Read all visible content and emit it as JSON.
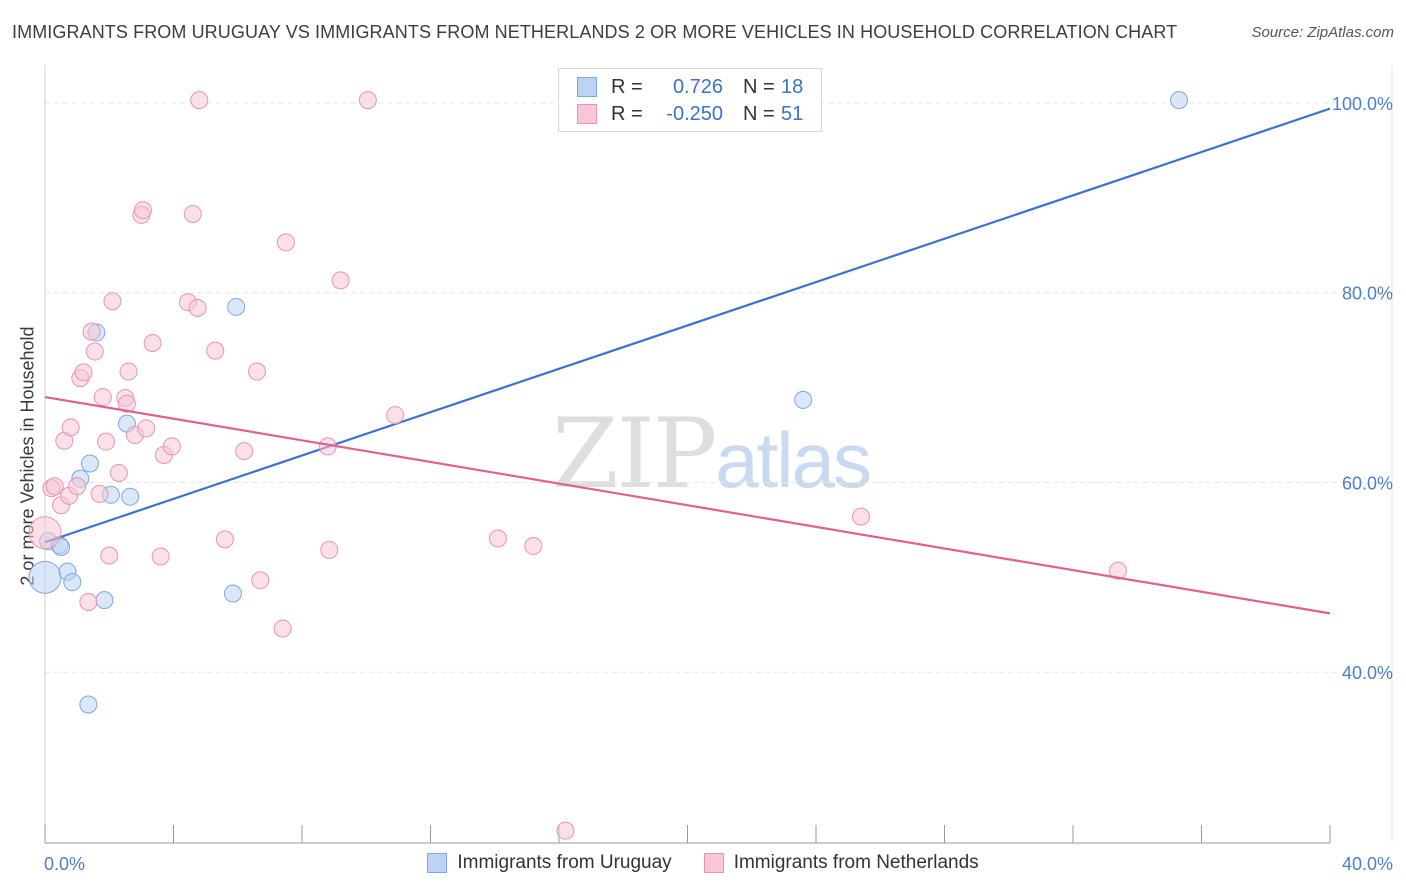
{
  "title": "IMMIGRANTS FROM URUGUAY VS IMMIGRANTS FROM NETHERLANDS 2 OR MORE VEHICLES IN HOUSEHOLD CORRELATION CHART",
  "source": "Source: ZipAtlas.com",
  "watermark": {
    "part1": "ZIP",
    "part2": "atlas"
  },
  "colors": {
    "blue": "#3a72cc",
    "blue_fill": "#bcd3f4",
    "blue_stroke": "#7fa7e0",
    "pink": "#e0608e",
    "pink_fill": "#f8c6d6",
    "pink_stroke": "#eb93b2",
    "grid": "#e6e6e6",
    "tick": "#4a7fd0"
  },
  "legend": {
    "rows": [
      {
        "r_label": "R =",
        "r_value": "0.726",
        "n_label": "N =",
        "n_value": "18",
        "series": "blue"
      },
      {
        "r_label": "R =",
        "r_value": "-0.250",
        "n_label": "N =",
        "n_value": "51",
        "series": "pink"
      }
    ]
  },
  "bottom_legend": [
    "Immigrants from Uruguay",
    "Immigrants from Netherlands"
  ],
  "chart_data": {
    "type": "scatter",
    "title": "IMMIGRANTS FROM URUGUAY VS IMMIGRANTS FROM NETHERLANDS 2 OR MORE VEHICLES IN HOUSEHOLD CORRELATION CHART",
    "xlabel": "",
    "ylabel": "2 or more Vehicles in Household",
    "xlim": [
      0,
      40
    ],
    "ylim": [
      22,
      104
    ],
    "x_tick_labels": [
      {
        "value": 0,
        "label": "0.0%"
      },
      {
        "value": 40,
        "label": "40.0%"
      }
    ],
    "y_tick_labels": [
      {
        "value": 100,
        "label": "100.0%"
      },
      {
        "value": 80,
        "label": "80.0%"
      },
      {
        "value": 60,
        "label": "60.0%"
      },
      {
        "value": 40,
        "label": "40.0%"
      }
    ],
    "y_gridlines": [
      40,
      60,
      80,
      100
    ],
    "series": [
      {
        "name": "Immigrants from Uruguay",
        "color": "blue",
        "trend": {
          "x": [
            0,
            40
          ],
          "y": [
            53.7,
            99.4
          ]
        },
        "points": [
          [
            0.0,
            50.0,
            "large"
          ],
          [
            0.1,
            53.8
          ],
          [
            0.45,
            53.4
          ],
          [
            0.5,
            53.2
          ],
          [
            0.7,
            50.6
          ],
          [
            0.85,
            49.5
          ],
          [
            1.1,
            60.4
          ],
          [
            1.4,
            62.0
          ],
          [
            1.6,
            75.8
          ],
          [
            1.85,
            47.6
          ],
          [
            2.05,
            58.7
          ],
          [
            2.55,
            66.2
          ],
          [
            2.65,
            58.5
          ],
          [
            1.35,
            36.6
          ],
          [
            5.95,
            78.5
          ],
          [
            5.85,
            48.3
          ],
          [
            23.6,
            68.7
          ],
          [
            35.3,
            100.3
          ]
        ]
      },
      {
        "name": "Immigrants from Netherlands",
        "color": "pink",
        "trend": {
          "x": [
            0,
            40
          ],
          "y": [
            69.0,
            46.2
          ]
        },
        "points": [
          [
            0.0,
            54.7,
            "large"
          ],
          [
            0.2,
            59.4
          ],
          [
            0.3,
            59.6
          ],
          [
            0.5,
            57.6
          ],
          [
            0.6,
            64.4
          ],
          [
            0.75,
            58.6
          ],
          [
            0.8,
            65.8
          ],
          [
            1.0,
            59.6
          ],
          [
            1.1,
            71.0
          ],
          [
            1.2,
            71.6
          ],
          [
            1.35,
            47.4
          ],
          [
            1.45,
            75.9
          ],
          [
            1.55,
            73.8
          ],
          [
            1.7,
            58.8
          ],
          [
            1.8,
            69.0
          ],
          [
            1.9,
            64.3
          ],
          [
            2.0,
            52.3
          ],
          [
            2.1,
            79.1
          ],
          [
            2.3,
            61.0
          ],
          [
            2.5,
            68.9
          ],
          [
            2.55,
            68.3
          ],
          [
            2.6,
            71.7
          ],
          [
            2.8,
            65.0
          ],
          [
            3.0,
            88.2
          ],
          [
            3.05,
            88.7
          ],
          [
            3.15,
            65.7
          ],
          [
            3.35,
            74.7
          ],
          [
            3.6,
            52.2
          ],
          [
            3.7,
            62.9
          ],
          [
            3.95,
            63.8
          ],
          [
            4.45,
            79.0
          ],
          [
            4.6,
            88.3
          ],
          [
            4.75,
            78.4
          ],
          [
            4.8,
            100.3
          ],
          [
            5.3,
            73.9
          ],
          [
            5.6,
            54.0
          ],
          [
            6.2,
            63.3
          ],
          [
            6.6,
            71.7
          ],
          [
            6.7,
            49.7
          ],
          [
            7.4,
            44.6
          ],
          [
            7.5,
            85.3
          ],
          [
            8.8,
            63.8
          ],
          [
            8.85,
            52.9
          ],
          [
            9.2,
            81.3
          ],
          [
            10.05,
            100.3
          ],
          [
            10.9,
            67.1
          ],
          [
            14.1,
            54.1
          ],
          [
            15.2,
            53.3
          ],
          [
            16.2,
            23.3
          ],
          [
            25.4,
            56.4
          ],
          [
            33.4,
            50.7
          ]
        ]
      }
    ]
  }
}
